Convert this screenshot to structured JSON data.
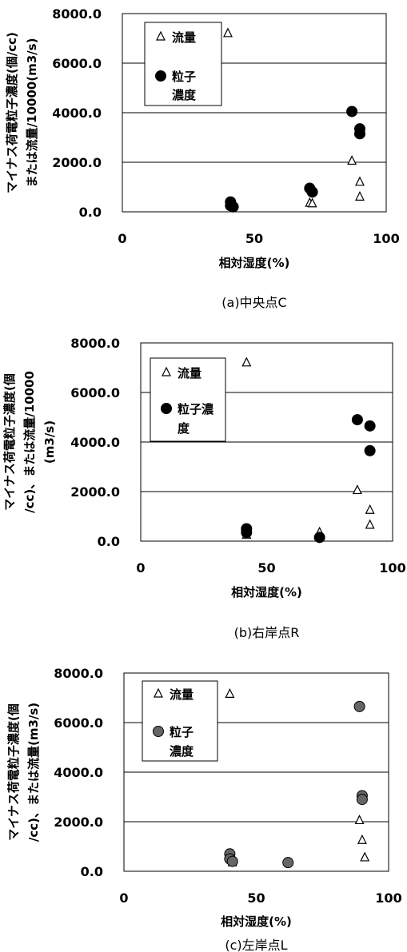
{
  "chart_data": [
    {
      "type": "scatter",
      "caption": "(a)中央点C",
      "xlabel": "相対湿度(%)",
      "ylabel_lines": [
        "マイナス荷電粒子濃度(個/cc)",
        "または流量/10000(m3/s)"
      ],
      "xlim": [
        0,
        100
      ],
      "ylim": [
        0,
        8000
      ],
      "xticks": [
        "0",
        "50",
        "100"
      ],
      "yticks": [
        "0.0",
        "2000.0",
        "4000.0",
        "6000.0",
        "8000.0"
      ],
      "grid": "horizontal",
      "legend_position": "top-left",
      "series": [
        {
          "name": "流量",
          "name_lines": [
            "流量"
          ],
          "marker": "open-triangle",
          "x": [
            40,
            71,
            72,
            87,
            90,
            90
          ],
          "y": [
            7200,
            350,
            330,
            2050,
            1200,
            600
          ]
        },
        {
          "name": "粒子濃度",
          "name_lines": [
            "粒子",
            "濃度"
          ],
          "marker": "filled-circle",
          "color": "#000000",
          "x": [
            41,
            41,
            42,
            71,
            72,
            87,
            90,
            90
          ],
          "y": [
            400,
            250,
            200,
            950,
            800,
            4050,
            3350,
            3150
          ]
        }
      ]
    },
    {
      "type": "scatter",
      "caption": "(b)右岸点R",
      "xlabel": "相対湿度(%)",
      "ylabel_lines": [
        "マイナス荷電粒子濃度(個",
        "/cc)、または流量/10000",
        "(m3/s)"
      ],
      "xlim": [
        0,
        100
      ],
      "ylim": [
        0,
        8000
      ],
      "xticks": [
        "0",
        "50",
        "100"
      ],
      "yticks": [
        "0.0",
        "2000.0",
        "4000.0",
        "6000.0",
        "8000.0"
      ],
      "grid": "horizontal",
      "legend_position": "top-left",
      "series": [
        {
          "name": "流量",
          "name_lines": [
            "流量"
          ],
          "marker": "open-triangle",
          "x": [
            42,
            42,
            71,
            86,
            91,
            91
          ],
          "y": [
            7200,
            250,
            350,
            2050,
            1250,
            650
          ]
        },
        {
          "name": "粒子濃度",
          "name_lines": [
            "粒子濃",
            "度"
          ],
          "marker": "filled-circle",
          "color": "#000000",
          "x": [
            42,
            42,
            71,
            86,
            91,
            91
          ],
          "y": [
            500,
            350,
            150,
            4900,
            4650,
            3650
          ]
        }
      ]
    },
    {
      "type": "scatter",
      "caption": "(c)左岸点L",
      "xlabel": "相対湿度(%)",
      "ylabel_lines": [
        "マイナス荷電粒子濃度(個",
        "/cc)、または流量(m3/s)"
      ],
      "xlim": [
        0,
        100
      ],
      "ylim": [
        0,
        8000
      ],
      "xticks": [
        "0",
        "50",
        "100"
      ],
      "yticks": [
        "0.0",
        "2000.0",
        "4000.0",
        "6000.0",
        "8000.0"
      ],
      "grid": "horizontal",
      "legend_position": "top-left",
      "series": [
        {
          "name": "流量",
          "name_lines": [
            "流量"
          ],
          "marker": "open-triangle",
          "x": [
            40,
            41,
            89,
            90,
            91
          ],
          "y": [
            7150,
            350,
            2050,
            1250,
            550
          ]
        },
        {
          "name": "粒子濃度",
          "name_lines": [
            "粒子",
            "濃度"
          ],
          "marker": "filled-circle",
          "color": "#666666",
          "x": [
            40,
            40,
            41,
            62,
            89,
            90,
            90
          ],
          "y": [
            700,
            500,
            400,
            350,
            6650,
            3050,
            2900
          ]
        }
      ]
    }
  ]
}
